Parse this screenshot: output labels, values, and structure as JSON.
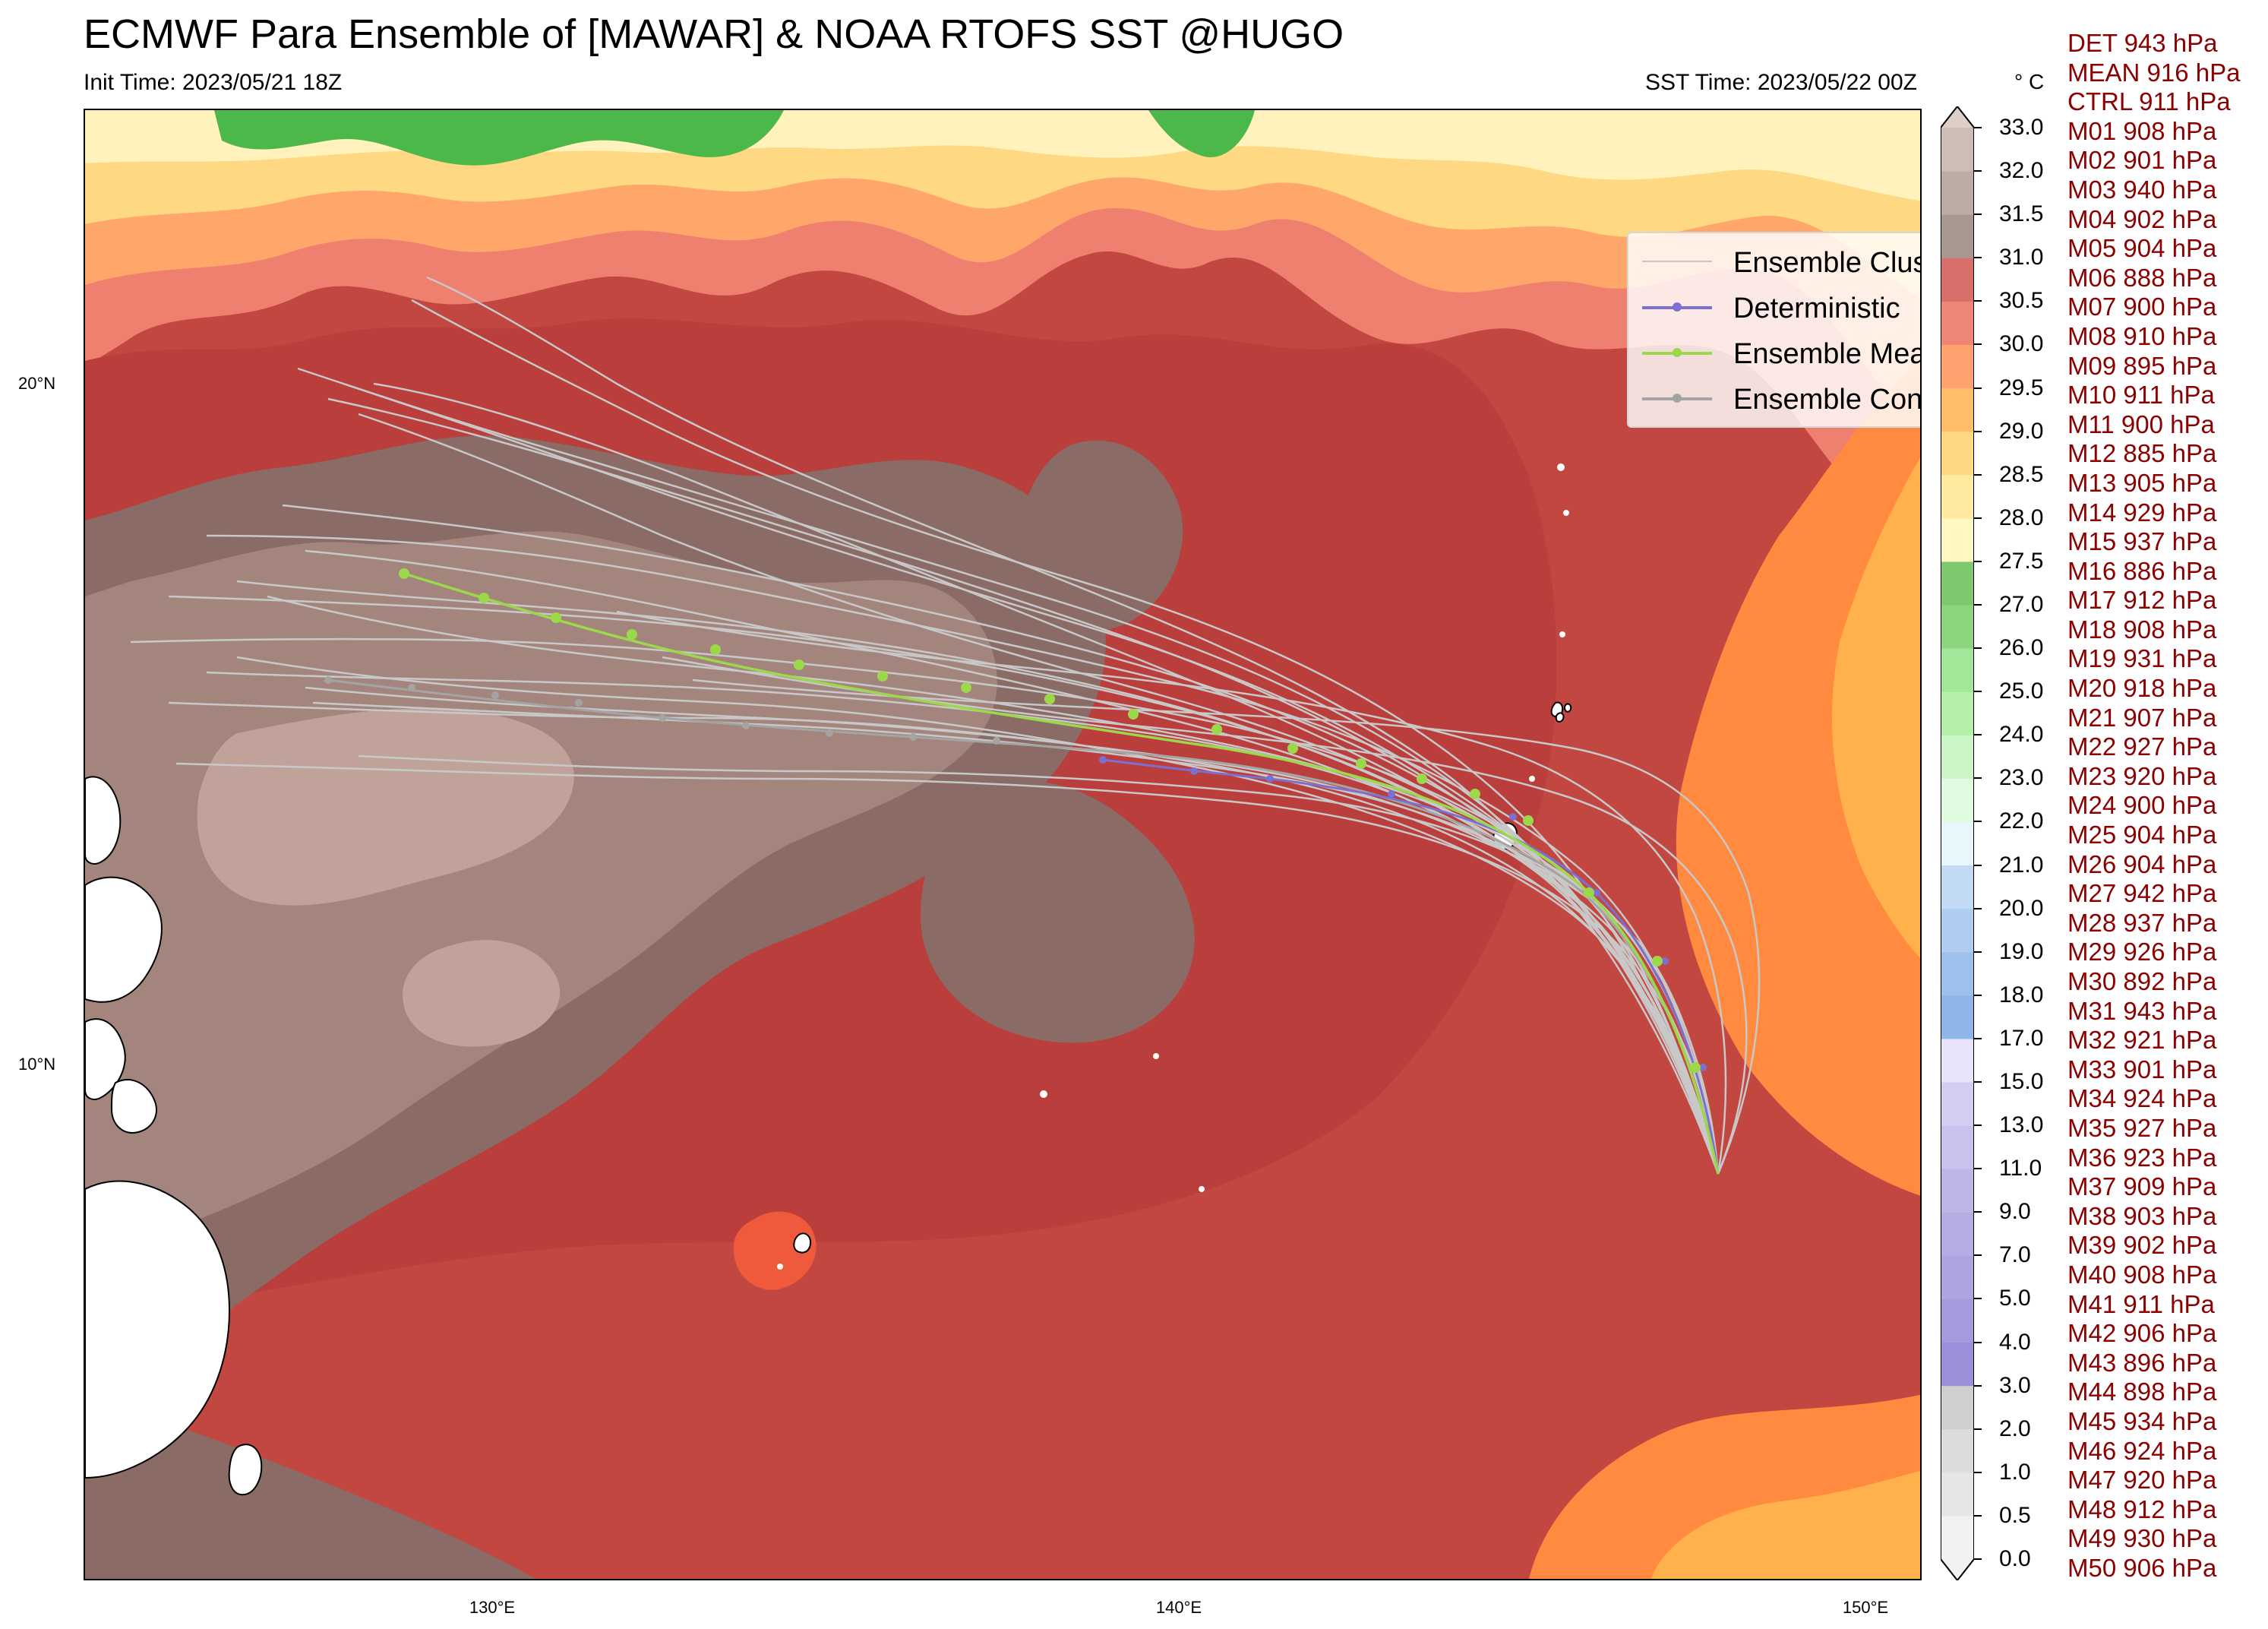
{
  "header": {
    "title": "ECMWF Para Ensemble of [MAWAR] & NOAA RTOFS SST @HUGO",
    "init_time": "Init Time: 2023/05/21 18Z",
    "sst_time": "SST Time: 2023/05/22 00Z"
  },
  "map": {
    "lon_labels": [
      "130°E",
      "140°E",
      "150°E"
    ],
    "lat_labels": [
      "20°N",
      "10°N"
    ],
    "colors": {
      "land": "#ffffff",
      "cluster": "#c8c8c8",
      "deterministic": "#7b6fcf",
      "mean": "#9bd84a",
      "control": "#a4a4a4"
    }
  },
  "legend": {
    "items": [
      {
        "label": "Ensemble Cluster",
        "color": "#c8c8c8",
        "marker": false
      },
      {
        "label": "Deterministic",
        "color": "#7b6fcf",
        "marker": true
      },
      {
        "label": "Ensemble Mean",
        "color": "#9bd84a",
        "marker": true
      },
      {
        "label": "Ensemble Control",
        "color": "#a4a4a4",
        "marker": true
      }
    ]
  },
  "colorbar": {
    "unit": "° C",
    "levels": [
      "0.0",
      "0.5",
      "1.0",
      "2.0",
      "3.0",
      "4.0",
      "5.0",
      "7.0",
      "9.0",
      "11.0",
      "13.0",
      "15.0",
      "17.0",
      "18.0",
      "19.0",
      "20.0",
      "21.0",
      "22.0",
      "23.0",
      "24.0",
      "25.0",
      "26.0",
      "27.0",
      "27.5",
      "28.0",
      "28.5",
      "29.0",
      "29.5",
      "30.0",
      "30.5",
      "31.0",
      "31.5",
      "32.0",
      "33.0"
    ],
    "colors": [
      "#f2f2f2",
      "#e6e6e6",
      "#dcdcdc",
      "#cfcfcf",
      "#9a8fd8",
      "#a39bdc",
      "#aca5e0",
      "#b4aee4",
      "#bdb7e8",
      "#c8c3ed",
      "#d2cef1",
      "#e6e4f8",
      "#8fb6e8",
      "#9ec1ec",
      "#afcdf0",
      "#c2daf4",
      "#e8f7fb",
      "#e0fbe0",
      "#ccf5c8",
      "#b4f0aa",
      "#a3e69a",
      "#8dd67f",
      "#7fc870",
      "#fff7c2",
      "#ffeaa0",
      "#ffd884",
      "#ffbd6a",
      "#ffa270",
      "#ef8576",
      "#d86f6a",
      "#a89890",
      "#bdaca5",
      "#cdbdb6",
      "#dccfca"
    ]
  },
  "pressures": [
    "DET 943 hPa",
    "MEAN 916 hPa",
    "CTRL 911 hPa",
    "M01 908 hPa",
    "M02 901 hPa",
    "M03 940 hPa",
    "M04 902 hPa",
    "M05 904 hPa",
    "M06 888 hPa",
    "M07 900 hPa",
    "M08 910 hPa",
    "M09 895 hPa",
    "M10 911 hPa",
    "M11 900 hPa",
    "M12 885 hPa",
    "M13 905 hPa",
    "M14 929 hPa",
    "M15 937 hPa",
    "M16 886 hPa",
    "M17 912 hPa",
    "M18 908 hPa",
    "M19 931 hPa",
    "M20 918 hPa",
    "M21 907 hPa",
    "M22 927 hPa",
    "M23 920 hPa",
    "M24 900 hPa",
    "M25 904 hPa",
    "M26 904 hPa",
    "M27 942 hPa",
    "M28 937 hPa",
    "M29 926 hPa",
    "M30 892 hPa",
    "M31 943 hPa",
    "M32 921 hPa",
    "M33 901 hPa",
    "M34 924 hPa",
    "M35 927 hPa",
    "M36 923 hPa",
    "M37 909 hPa",
    "M38 903 hPa",
    "M39 902 hPa",
    "M40 908 hPa",
    "M41 911 hPa",
    "M42 906 hPa",
    "M43 896 hPa",
    "M44 898 hPa",
    "M45 934 hPa",
    "M46 924 hPa",
    "M47 920 hPa",
    "M48 912 hPa",
    "M49 930 hPa",
    "M50 906 hPa"
  ]
}
